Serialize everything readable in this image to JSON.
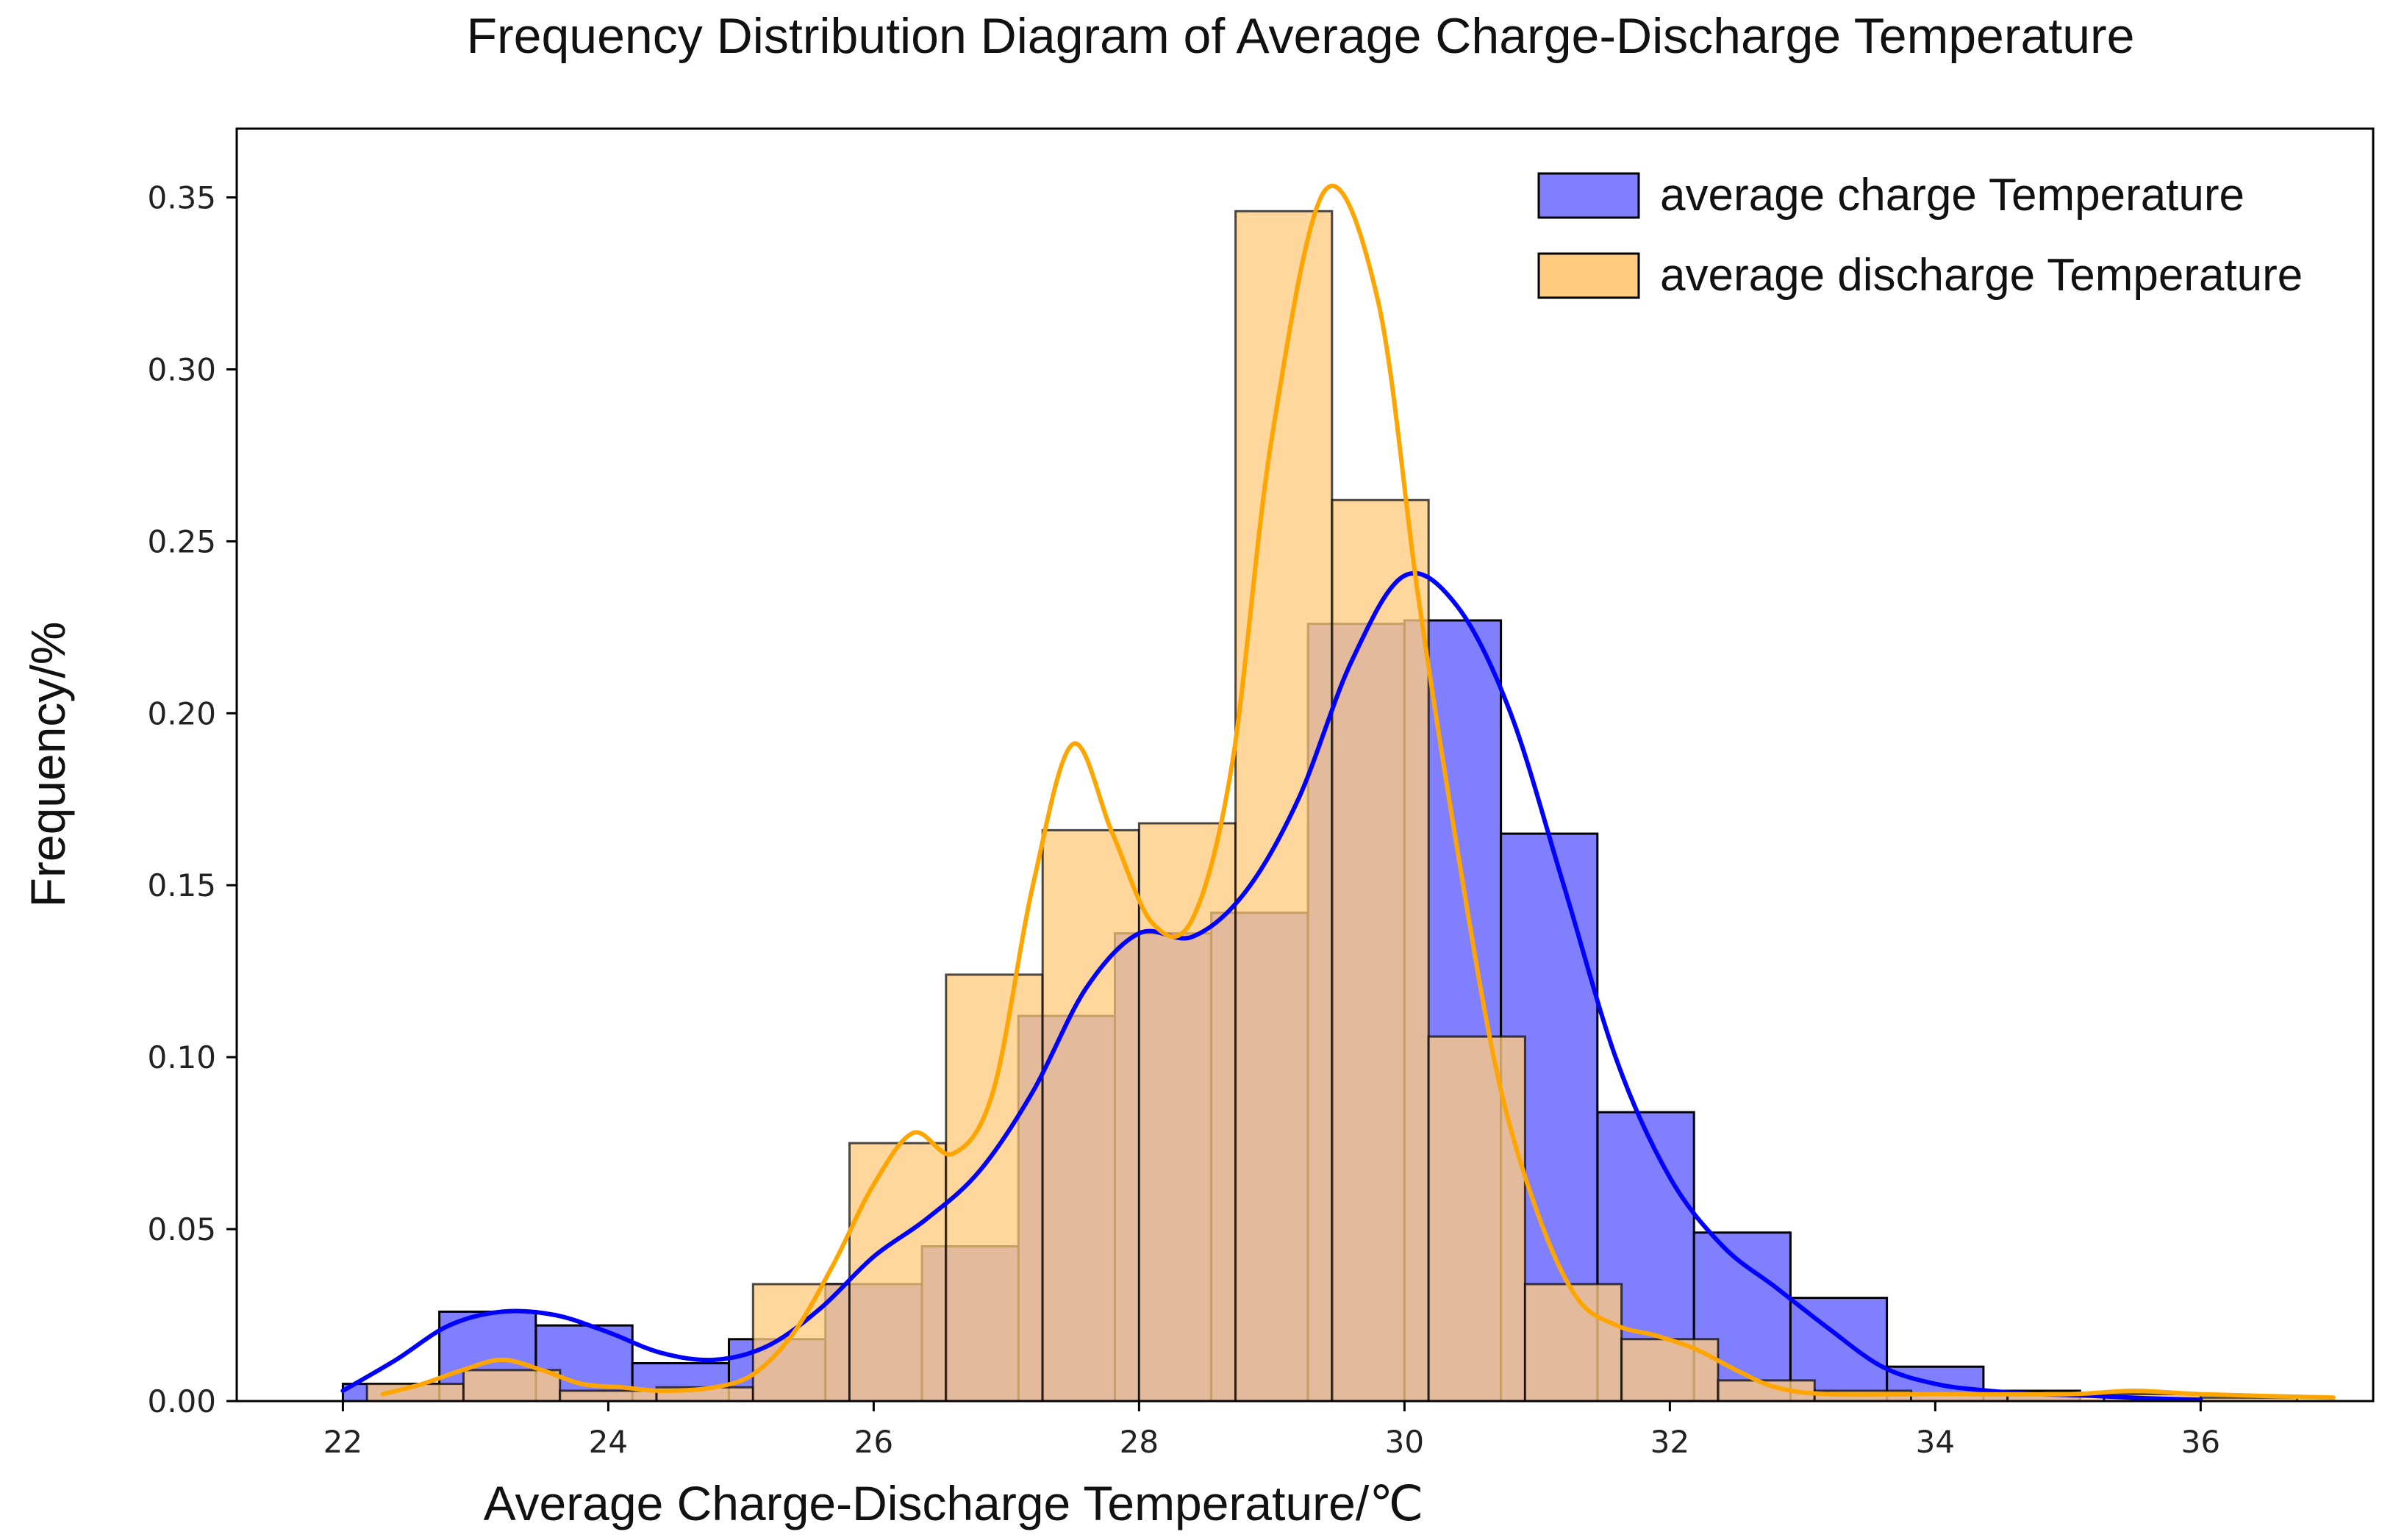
{
  "chart_data": {
    "type": "histogram",
    "title": "Frequency Distribution Diagram of Average Charge-Discharge Temperature",
    "xlabel": "Average Charge-Discharge Temperature/℃",
    "ylabel": "Frequency/%",
    "xlim": [
      21.2,
      37.3
    ],
    "ylim": [
      0,
      0.37
    ],
    "xticks": [
      22,
      24,
      26,
      28,
      30,
      32,
      34,
      36
    ],
    "xtick_labels": [
      "22",
      "24",
      "26",
      "28",
      "30",
      "32",
      "34",
      "36"
    ],
    "yticks": [
      0,
      0.05,
      0.1,
      0.15,
      0.2,
      0.25,
      0.3,
      0.35
    ],
    "ytick_labels": [
      "0.00",
      "0.05",
      "0.10",
      "0.15",
      "0.20",
      "0.25",
      "0.30",
      "0.35"
    ],
    "legend_position": "top-right",
    "series": [
      {
        "name": "average charge Temperature",
        "color": "#0000ff",
        "fill_color": "#8080ff",
        "bin_width": 0.727,
        "bin_starts": [
          22.0,
          22.727,
          23.455,
          24.182,
          24.909,
          25.636,
          26.364,
          27.091,
          27.818,
          28.545,
          29.273,
          30.0,
          30.727,
          31.455,
          32.182,
          32.909,
          33.636,
          34.364
        ],
        "values": [
          0.005,
          0.026,
          0.022,
          0.011,
          0.018,
          0.034,
          0.045,
          0.112,
          0.136,
          0.142,
          0.226,
          0.227,
          0.165,
          0.084,
          0.049,
          0.03,
          0.01,
          0.003
        ],
        "kde": [
          [
            22.0,
            0.003
          ],
          [
            22.4,
            0.012
          ],
          [
            22.8,
            0.022
          ],
          [
            23.2,
            0.026
          ],
          [
            23.6,
            0.025
          ],
          [
            24.0,
            0.02
          ],
          [
            24.4,
            0.014
          ],
          [
            24.8,
            0.012
          ],
          [
            25.2,
            0.016
          ],
          [
            25.6,
            0.027
          ],
          [
            26.0,
            0.042
          ],
          [
            26.4,
            0.053
          ],
          [
            26.8,
            0.067
          ],
          [
            27.2,
            0.09
          ],
          [
            27.6,
            0.12
          ],
          [
            28.0,
            0.136
          ],
          [
            28.4,
            0.135
          ],
          [
            28.8,
            0.148
          ],
          [
            29.2,
            0.175
          ],
          [
            29.6,
            0.215
          ],
          [
            30.0,
            0.24
          ],
          [
            30.4,
            0.231
          ],
          [
            30.8,
            0.2
          ],
          [
            31.2,
            0.15
          ],
          [
            31.6,
            0.099
          ],
          [
            32.0,
            0.065
          ],
          [
            32.4,
            0.045
          ],
          [
            32.8,
            0.033
          ],
          [
            33.2,
            0.021
          ],
          [
            33.6,
            0.01
          ],
          [
            34.0,
            0.005
          ],
          [
            34.4,
            0.003
          ],
          [
            34.8,
            0.002
          ],
          [
            35.2,
            0.0015
          ],
          [
            35.6,
            0.0008
          ],
          [
            36.0,
            0.0004
          ]
        ]
      },
      {
        "name": "average discharge Temperature",
        "color": "#ffa500",
        "fill_color": "#ffcb7f",
        "bin_width": 0.727,
        "bin_starts": [
          22.182,
          22.909,
          23.636,
          24.364,
          25.091,
          25.818,
          26.545,
          27.273,
          28.0,
          28.727,
          29.455,
          30.182,
          30.909,
          31.636,
          32.364,
          33.091,
          33.818,
          34.545,
          35.273,
          36.0
        ],
        "values": [
          0.005,
          0.009,
          0.003,
          0.004,
          0.034,
          0.075,
          0.124,
          0.166,
          0.168,
          0.346,
          0.262,
          0.106,
          0.034,
          0.018,
          0.006,
          0.003,
          0.002,
          0.002,
          0.002,
          0.001
        ],
        "kde": [
          [
            22.3,
            0.002
          ],
          [
            22.6,
            0.005
          ],
          [
            22.9,
            0.009
          ],
          [
            23.2,
            0.012
          ],
          [
            23.5,
            0.009
          ],
          [
            23.8,
            0.005
          ],
          [
            24.1,
            0.004
          ],
          [
            24.4,
            0.003
          ],
          [
            24.8,
            0.004
          ],
          [
            25.1,
            0.008
          ],
          [
            25.4,
            0.02
          ],
          [
            25.7,
            0.04
          ],
          [
            26.0,
            0.063
          ],
          [
            26.3,
            0.078
          ],
          [
            26.6,
            0.072
          ],
          [
            26.9,
            0.09
          ],
          [
            27.2,
            0.15
          ],
          [
            27.5,
            0.191
          ],
          [
            27.8,
            0.165
          ],
          [
            28.1,
            0.139
          ],
          [
            28.4,
            0.14
          ],
          [
            28.7,
            0.185
          ],
          [
            29.0,
            0.28
          ],
          [
            29.4,
            0.352
          ],
          [
            29.8,
            0.32
          ],
          [
            30.1,
            0.235
          ],
          [
            30.4,
            0.16
          ],
          [
            30.7,
            0.095
          ],
          [
            31.0,
            0.055
          ],
          [
            31.3,
            0.03
          ],
          [
            31.6,
            0.022
          ],
          [
            31.9,
            0.019
          ],
          [
            32.2,
            0.015
          ],
          [
            32.5,
            0.009
          ],
          [
            32.8,
            0.004
          ],
          [
            33.2,
            0.002
          ],
          [
            34.0,
            0.002
          ],
          [
            35.0,
            0.002
          ],
          [
            35.5,
            0.003
          ],
          [
            36.0,
            0.002
          ],
          [
            37.0,
            0.001
          ]
        ]
      }
    ]
  }
}
